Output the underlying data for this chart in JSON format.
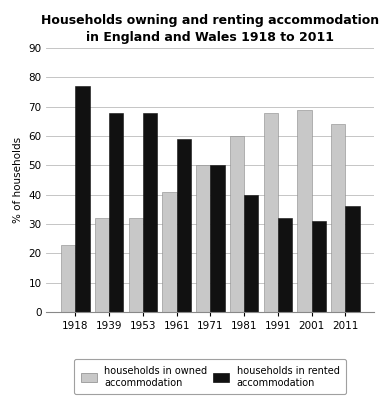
{
  "title": "Households owning and renting accommodation\nin England and Wales 1918 to 2011",
  "years": [
    "1918",
    "1939",
    "1953",
    "1961",
    "1971",
    "1981",
    "1991",
    "2001",
    "2011"
  ],
  "owned": [
    23,
    32,
    32,
    41,
    50,
    60,
    68,
    69,
    64
  ],
  "rented": [
    77,
    68,
    68,
    59,
    50,
    40,
    32,
    31,
    36
  ],
  "owned_color": "#c8c8c8",
  "rented_color": "#111111",
  "ylabel": "% of households",
  "ylim": [
    0,
    90
  ],
  "yticks": [
    0,
    10,
    20,
    30,
    40,
    50,
    60,
    70,
    80,
    90
  ],
  "legend_owned": "households in owned\naccommodation",
  "legend_rented": "households in rented\naccommodation",
  "title_fontsize": 9,
  "axis_fontsize": 7.5,
  "legend_fontsize": 7,
  "bar_width": 0.42
}
